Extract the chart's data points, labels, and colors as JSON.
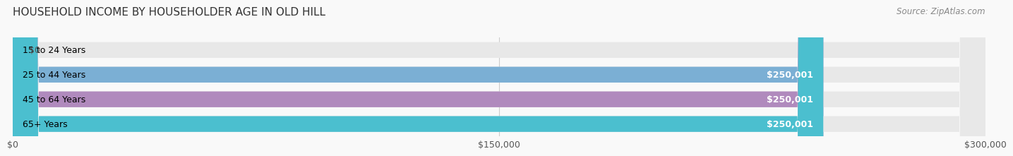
{
  "title": "HOUSEHOLD INCOME BY HOUSEHOLDER AGE IN OLD HILL",
  "source": "Source: ZipAtlas.com",
  "categories": [
    "15 to 24 Years",
    "25 to 44 Years",
    "45 to 64 Years",
    "65+ Years"
  ],
  "values": [
    0,
    250001,
    250001,
    250001
  ],
  "bar_colors": [
    "#f4a0a0",
    "#7bafd4",
    "#b08abd",
    "#4bbfcf"
  ],
  "bar_bg_color": "#eeeeee",
  "xlim": [
    0,
    300000
  ],
  "xticks": [
    0,
    150000,
    300000
  ],
  "xtick_labels": [
    "$0",
    "$150,000",
    "$300,000"
  ],
  "label_fontsize": 9,
  "title_fontsize": 11,
  "source_fontsize": 8.5,
  "value_label_color": "#ffffff",
  "zero_label_color": "#555555",
  "background_color": "#f9f9f9"
}
